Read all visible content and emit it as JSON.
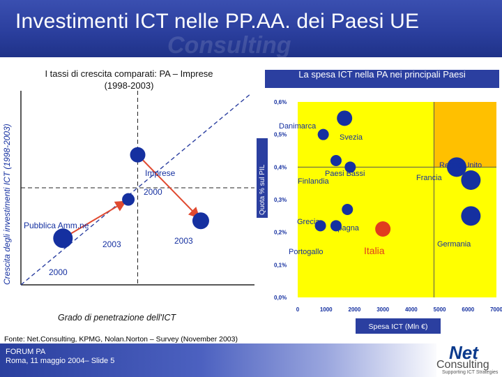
{
  "header": {
    "title": "Investimenti ICT nelle PP.AA. dei Paesi UE",
    "watermark": "Consulting"
  },
  "left_chart_title": [
    "I tassi di crescita comparati: PA – Imprese",
    "(1998-2003)"
  ],
  "right_chart_title": "La spesa ICT nella PA nei principali Paesi",
  "source": "Fonte: Net.Consulting, KPMG, Nolan.Norton – Survey (November 2003)",
  "footer": {
    "event": "FORUM PA",
    "place": "Roma, 11 maggio 2004– Slide 5"
  },
  "logo": {
    "line1": "Net",
    "line2": "Consulting",
    "tagline": "Supporting ICT Strategies"
  },
  "colors": {
    "blue": "#2b3fa0",
    "bubble": "#1530a0",
    "italia": "#e03c1e",
    "yellow": "#ffff00",
    "orange": "#ffc000",
    "line_red": "#e04a30"
  },
  "chart_data": [
    {
      "type": "scatter",
      "title": "I tassi di crescita comparati: PA – Imprese (1998-2003)",
      "xlabel": "Grado di penetrazione dell'ICT",
      "ylabel": "Crescita degli investimenti ICT (1998-2003)",
      "quadrant_lines": true,
      "series": [
        {
          "name": "Pubblica Amm.ne",
          "start_label": "2000",
          "end_label": "2003",
          "points": [
            {
              "x": 0.18,
              "y": 0.24
            },
            {
              "x": 0.46,
              "y": 0.44
            }
          ]
        },
        {
          "name": "Imprese",
          "start_label": "2000",
          "end_label": "2003",
          "points": [
            {
              "x": 0.5,
              "y": 0.67
            },
            {
              "x": 0.77,
              "y": 0.33
            }
          ]
        }
      ],
      "annotations": [
        "Imprese",
        "2000",
        "Pubblica Amm.ne",
        "2003",
        "2003",
        "2000"
      ]
    },
    {
      "type": "scatter",
      "title": "La spesa ICT nella PA nei principali Paesi",
      "xlabel": "Spesa ICT (Mln €)",
      "ylabel": "Quota % sul PIL",
      "xlim": [
        0,
        7000
      ],
      "ylim": [
        0,
        0.6
      ],
      "x_ticks": [
        "0",
        "1000",
        "2000",
        "3000",
        "4000",
        "5000",
        "6000",
        "7000"
      ],
      "y_ticks": [
        "0,0%",
        "0,1%",
        "0,2%",
        "0,3%",
        "0,4%",
        "0,5%",
        "0,6%"
      ],
      "quadrant_x": 4800,
      "quadrant_y": 0.4,
      "points": [
        {
          "label": "Danimarca",
          "x": 900,
          "y": 0.5,
          "size": "small"
        },
        {
          "label": "Svezia",
          "x": 1650,
          "y": 0.55,
          "size": "medium"
        },
        {
          "label": "Finlandia",
          "x": 1350,
          "y": 0.42,
          "size": "small"
        },
        {
          "label": "Paesi Bassi",
          "x": 1850,
          "y": 0.4,
          "size": "small"
        },
        {
          "label": "Regno Unito",
          "x": 5600,
          "y": 0.4,
          "size": "large"
        },
        {
          "label": "Francia",
          "x": 6100,
          "y": 0.36,
          "size": "large"
        },
        {
          "label": "Grecia",
          "x": 800,
          "y": 0.22,
          "size": "small"
        },
        {
          "label": "Spagna",
          "x": 1750,
          "y": 0.27,
          "size": "small"
        },
        {
          "label": "Portogallo",
          "x": 1350,
          "y": 0.22,
          "size": "small"
        },
        {
          "label": "Italia",
          "x": 3000,
          "y": 0.21,
          "size": "medium"
        },
        {
          "label": "Germania",
          "x": 6100,
          "y": 0.25,
          "size": "large"
        }
      ]
    }
  ]
}
